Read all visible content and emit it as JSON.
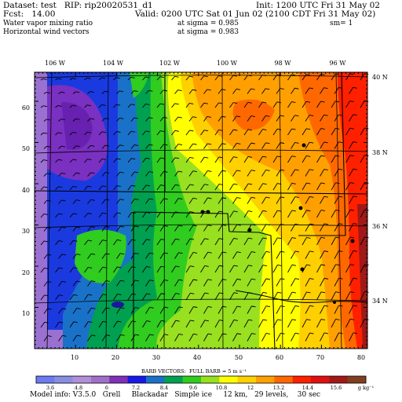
{
  "header": {
    "dataset_line": "Dataset: test   RIP: rip20020531_d1",
    "init_line": "Init: 1200 UTC Fri 31 May 02",
    "fcst_line": "Fcst:   14.00",
    "valid_line": "Valid: 0200 UTC Sat 01 Jun 02 (2100 CDT Fri 31 May 02)",
    "field1_name": "Water vapor mixing ratio",
    "field1_level": "at sigma = 0.985",
    "field1_sm": "sm= 1",
    "field2_name": "Horizontal wind vectors",
    "field2_level": "at sigma = 0.983"
  },
  "map": {
    "top_lon_labels": [
      "106 W",
      "104 W",
      "102 W",
      "100 W",
      "98 W",
      "96 W"
    ],
    "right_lat_labels": [
      "40 N",
      "38 N",
      "36 N",
      "34 N"
    ],
    "x_ticks": [
      "10",
      "20",
      "30",
      "40",
      "50",
      "60",
      "70",
      "80"
    ],
    "y_ticks": [
      "10",
      "20",
      "30",
      "40",
      "50",
      "60"
    ],
    "station_marker_color": "#000000"
  },
  "colorbar": {
    "title": "BARB VECTORS:  FULL BARB = 5 m s⁻¹",
    "labels": [
      "3.6",
      "4.8",
      "6",
      "7.2",
      "8.4",
      "9.6",
      "10.8",
      "12",
      "13.2",
      "14.4",
      "15.6"
    ],
    "unit": "g kg⁻¹",
    "colors": [
      "#6a7cf0",
      "#8a8ee0",
      "#b090d8",
      "#a070c8",
      "#8030b8",
      "#1818e8",
      "#1a72c8",
      "#00a050",
      "#30cc20",
      "#98e020",
      "#ffff00",
      "#ffd000",
      "#ffa000",
      "#ff6800",
      "#ff2000",
      "#e01010",
      "#a01818",
      "#804020"
    ]
  },
  "footer": {
    "model_info": "Model info: V3.5.0   Grell     Blackadar   Simple ice     12 km,   29 levels,    30 sec"
  }
}
